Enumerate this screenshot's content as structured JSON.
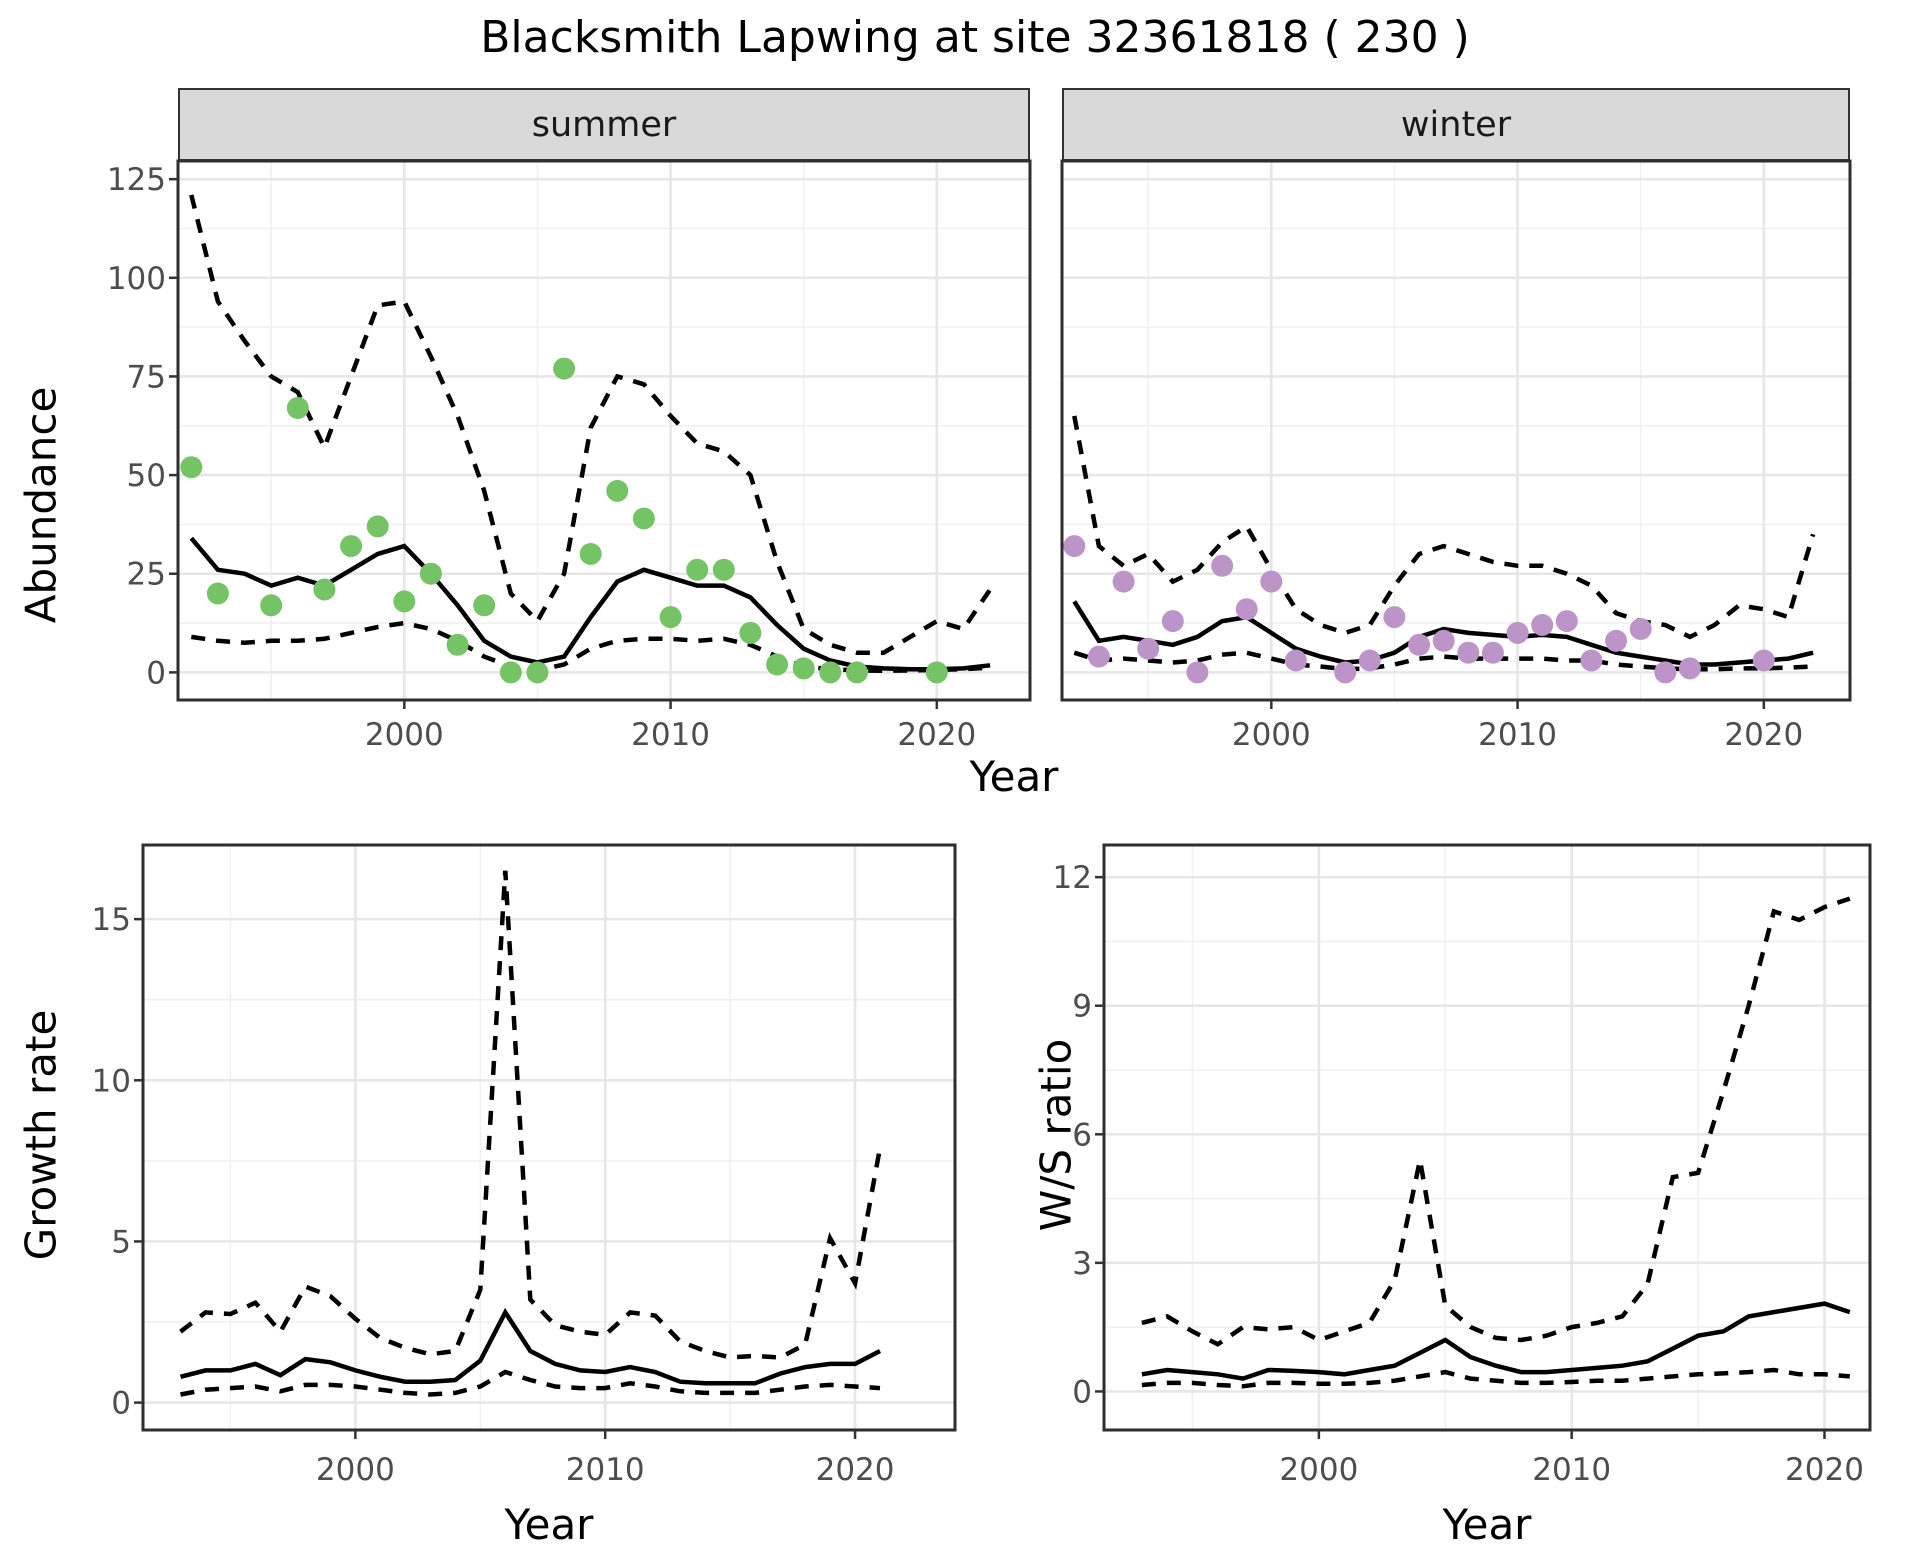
{
  "title": "Blacksmith Lapwing at site 32361818 ( 230 )",
  "facets": {
    "summer": "summer",
    "winter": "winter"
  },
  "axis_titles": {
    "x": "Year",
    "abundance": "Abundance",
    "growth": "Growth rate",
    "ws": "W/S ratio"
  },
  "colors": {
    "point_summer": "#74c364",
    "point_winter": "#bd94c8",
    "line": "#000000",
    "strip_bg": "#d9d9d9",
    "grid_major": "#e6e6e6",
    "grid_minor": "#f0f0f0",
    "panel_border": "#2e2e2e",
    "tick_text": "#4d4d4d"
  },
  "chart_data": [
    {
      "id": "abundance-summer",
      "type": "line",
      "facet": "summer",
      "title": "",
      "xlabel": "Year",
      "ylabel": "Abundance",
      "xlim": [
        1991.5,
        2023.5
      ],
      "ylim": [
        -7,
        129.6
      ],
      "xticks": [
        2000,
        2010,
        2020
      ],
      "yticks": [
        0,
        25,
        50,
        75,
        100,
        125
      ],
      "x_minor": [
        1995,
        2005,
        2015
      ],
      "y_minor": [
        12.5,
        37.5,
        62.5,
        87.5,
        112.5
      ],
      "years": [
        1992,
        1993,
        1994,
        1995,
        1996,
        1997,
        1998,
        1999,
        2000,
        2001,
        2002,
        2003,
        2004,
        2005,
        2006,
        2007,
        2008,
        2009,
        2010,
        2011,
        2012,
        2013,
        2014,
        2015,
        2016,
        2017,
        2018,
        2019,
        2020,
        2021,
        2022
      ],
      "series": [
        {
          "name": "fit",
          "style": "solid",
          "values": [
            34,
            26,
            25,
            22,
            24,
            22,
            26,
            30,
            32,
            25,
            17,
            8,
            4,
            2.5,
            4,
            14,
            23,
            26,
            24,
            22,
            22,
            19,
            12,
            6,
            3,
            1.5,
            1,
            0.8,
            0.8,
            1,
            1.8
          ]
        },
        {
          "name": "upper_ci",
          "style": "dashed",
          "values": [
            121,
            94,
            84,
            75,
            71,
            57,
            75,
            93,
            94,
            80,
            65,
            46,
            20,
            13,
            25,
            62,
            75,
            73,
            65,
            58,
            56,
            50,
            28,
            11,
            7,
            5,
            5,
            9,
            13,
            11,
            21
          ]
        },
        {
          "name": "lower_ci",
          "style": "dashed",
          "values": [
            9,
            8,
            7.5,
            8,
            8,
            8.5,
            10,
            11.5,
            12.5,
            11,
            8,
            4,
            1.5,
            0.5,
            2,
            6,
            8,
            8.5,
            8.5,
            8,
            8.5,
            7,
            4,
            1.5,
            0.8,
            0.5,
            0.4,
            0.5,
            0.6,
            0.8,
            1.2
          ]
        }
      ],
      "points": {
        "name": "observed-summer",
        "color": "#74c364",
        "years": [
          1992,
          1993,
          1995,
          1996,
          1997,
          1998,
          1999,
          2000,
          2001,
          2002,
          2003,
          2004,
          2005,
          2006,
          2007,
          2008,
          2009,
          2010,
          2011,
          2012,
          2013,
          2014,
          2015,
          2016,
          2017,
          2020
        ],
        "values": [
          52,
          20,
          17,
          67,
          21,
          32,
          37,
          18,
          25,
          7,
          17,
          0,
          0,
          77,
          30,
          46,
          39,
          14,
          26,
          26,
          10,
          2,
          1,
          0,
          0,
          0
        ]
      }
    },
    {
      "id": "abundance-winter",
      "type": "line",
      "facet": "winter",
      "title": "",
      "xlabel": "Year",
      "ylabel": "Abundance",
      "xlim": [
        1991.5,
        2023.5
      ],
      "ylim": [
        -7,
        129.6
      ],
      "xticks": [
        2000,
        2010,
        2020
      ],
      "yticks": [
        0,
        25,
        50,
        75,
        100,
        125
      ],
      "x_minor": [
        1995,
        2005,
        2015
      ],
      "y_minor": [
        12.5,
        37.5,
        62.5,
        87.5,
        112.5
      ],
      "years": [
        1992,
        1993,
        1994,
        1995,
        1996,
        1997,
        1998,
        1999,
        2000,
        2001,
        2002,
        2003,
        2004,
        2005,
        2006,
        2007,
        2008,
        2009,
        2010,
        2011,
        2012,
        2013,
        2014,
        2015,
        2016,
        2017,
        2018,
        2019,
        2020,
        2021,
        2022
      ],
      "series": [
        {
          "name": "fit",
          "style": "solid",
          "values": [
            18,
            8,
            9,
            8,
            7,
            9,
            13,
            14,
            10,
            6,
            4,
            2.5,
            3,
            5,
            9,
            11,
            10,
            9.5,
            9,
            9.5,
            9,
            7,
            5,
            4,
            3,
            2,
            2,
            2.5,
            3,
            3.5,
            5
          ]
        },
        {
          "name": "upper_ci",
          "style": "dashed",
          "values": [
            65,
            32,
            27,
            30,
            23,
            26,
            33,
            37,
            26,
            16,
            12,
            10,
            12,
            22,
            30,
            32,
            30,
            28,
            27,
            27,
            25,
            22,
            15,
            13,
            12,
            9,
            12,
            17,
            16,
            14,
            35
          ]
        },
        {
          "name": "lower_ci",
          "style": "dashed",
          "values": [
            5,
            3,
            3.5,
            3,
            2.5,
            3,
            4.5,
            5,
            3.5,
            2,
            1.5,
            0.8,
            1,
            2,
            3.5,
            4,
            3.5,
            3.5,
            3.5,
            3.5,
            3,
            3,
            2,
            1.5,
            1,
            0.8,
            0.8,
            1,
            1,
            1.2,
            1.5
          ]
        }
      ],
      "points": {
        "name": "observed-winter",
        "color": "#bd94c8",
        "years": [
          1992,
          1993,
          1994,
          1995,
          1996,
          1997,
          1998,
          1999,
          2000,
          2001,
          2003,
          2004,
          2005,
          2006,
          2007,
          2008,
          2009,
          2010,
          2011,
          2012,
          2013,
          2014,
          2015,
          2016,
          2017,
          2020
        ],
        "values": [
          32,
          4,
          23,
          6,
          13,
          0,
          27,
          16,
          23,
          3,
          0,
          3,
          14,
          7,
          8,
          5,
          5,
          10,
          12,
          13,
          3,
          8,
          11,
          0,
          1,
          3
        ]
      }
    },
    {
      "id": "growth-rate",
      "type": "line",
      "facet": "",
      "title": "",
      "xlabel": "Year",
      "ylabel": "Growth rate",
      "xlim": [
        1991.5,
        2024
      ],
      "ylim": [
        -0.85,
        17.3
      ],
      "xticks": [
        2000,
        2010,
        2020
      ],
      "yticks": [
        0,
        5,
        10,
        15
      ],
      "x_minor": [
        1995,
        2005,
        2015
      ],
      "y_minor": [
        2.5,
        7.5,
        12.5
      ],
      "years": [
        1993,
        1994,
        1995,
        1996,
        1997,
        1998,
        1999,
        2000,
        2001,
        2002,
        2003,
        2004,
        2005,
        2006,
        2007,
        2008,
        2009,
        2010,
        2011,
        2012,
        2013,
        2014,
        2015,
        2016,
        2017,
        2018,
        2019,
        2020,
        2021
      ],
      "series": [
        {
          "name": "fit",
          "style": "solid",
          "values": [
            0.8,
            1.0,
            1.0,
            1.2,
            0.85,
            1.35,
            1.25,
            1.0,
            0.8,
            0.65,
            0.65,
            0.7,
            1.3,
            2.8,
            1.6,
            1.2,
            1.0,
            0.95,
            1.1,
            0.95,
            0.65,
            0.6,
            0.6,
            0.6,
            0.9,
            1.1,
            1.2,
            1.2,
            1.6
          ]
        },
        {
          "name": "upper_ci",
          "style": "dashed",
          "values": [
            2.2,
            2.8,
            2.75,
            3.1,
            2.2,
            3.6,
            3.3,
            2.6,
            2.0,
            1.7,
            1.5,
            1.6,
            3.5,
            16.5,
            3.2,
            2.4,
            2.2,
            2.1,
            2.8,
            2.7,
            1.9,
            1.6,
            1.4,
            1.45,
            1.4,
            1.8,
            5.1,
            3.7,
            7.9
          ]
        },
        {
          "name": "lower_ci",
          "style": "dashed",
          "values": [
            0.25,
            0.4,
            0.45,
            0.5,
            0.35,
            0.55,
            0.55,
            0.5,
            0.4,
            0.3,
            0.25,
            0.3,
            0.5,
            0.95,
            0.7,
            0.5,
            0.45,
            0.45,
            0.6,
            0.5,
            0.35,
            0.3,
            0.3,
            0.3,
            0.4,
            0.5,
            0.55,
            0.5,
            0.45
          ]
        }
      ]
    },
    {
      "id": "ws-ratio",
      "type": "line",
      "facet": "",
      "title": "",
      "xlabel": "Year",
      "ylabel": "W/S ratio",
      "xlim": [
        1991.5,
        2021.8
      ],
      "ylim": [
        -0.9,
        12.75
      ],
      "xticks": [
        2000,
        2010,
        2020
      ],
      "yticks": [
        0,
        3,
        6,
        9,
        12
      ],
      "x_minor": [
        1995,
        2005,
        2015
      ],
      "y_minor": [
        1.5,
        4.5,
        7.5,
        10.5
      ],
      "years": [
        1993,
        1994,
        1995,
        1996,
        1997,
        1998,
        1999,
        2000,
        2001,
        2002,
        2003,
        2004,
        2005,
        2006,
        2007,
        2008,
        2009,
        2010,
        2011,
        2012,
        2013,
        2014,
        2015,
        2016,
        2017,
        2018,
        2019,
        2020,
        2021
      ],
      "series": [
        {
          "name": "fit",
          "style": "solid",
          "values": [
            0.4,
            0.5,
            0.45,
            0.4,
            0.3,
            0.5,
            0.48,
            0.45,
            0.4,
            0.5,
            0.6,
            0.9,
            1.2,
            0.8,
            0.6,
            0.45,
            0.45,
            0.5,
            0.55,
            0.6,
            0.7,
            1.0,
            1.3,
            1.4,
            1.75,
            1.85,
            1.95,
            2.05,
            1.85
          ]
        },
        {
          "name": "upper_ci",
          "style": "dashed",
          "values": [
            1.6,
            1.75,
            1.4,
            1.1,
            1.5,
            1.45,
            1.5,
            1.2,
            1.4,
            1.6,
            2.6,
            5.4,
            2.0,
            1.5,
            1.25,
            1.2,
            1.3,
            1.5,
            1.6,
            1.75,
            2.5,
            5.0,
            5.1,
            7.0,
            9.0,
            11.2,
            11.0,
            11.3,
            11.5
          ]
        },
        {
          "name": "lower_ci",
          "style": "dashed",
          "values": [
            0.15,
            0.2,
            0.2,
            0.15,
            0.12,
            0.2,
            0.2,
            0.18,
            0.18,
            0.2,
            0.25,
            0.35,
            0.45,
            0.3,
            0.25,
            0.2,
            0.2,
            0.22,
            0.25,
            0.25,
            0.3,
            0.35,
            0.4,
            0.42,
            0.45,
            0.5,
            0.4,
            0.4,
            0.35
          ]
        }
      ]
    }
  ]
}
